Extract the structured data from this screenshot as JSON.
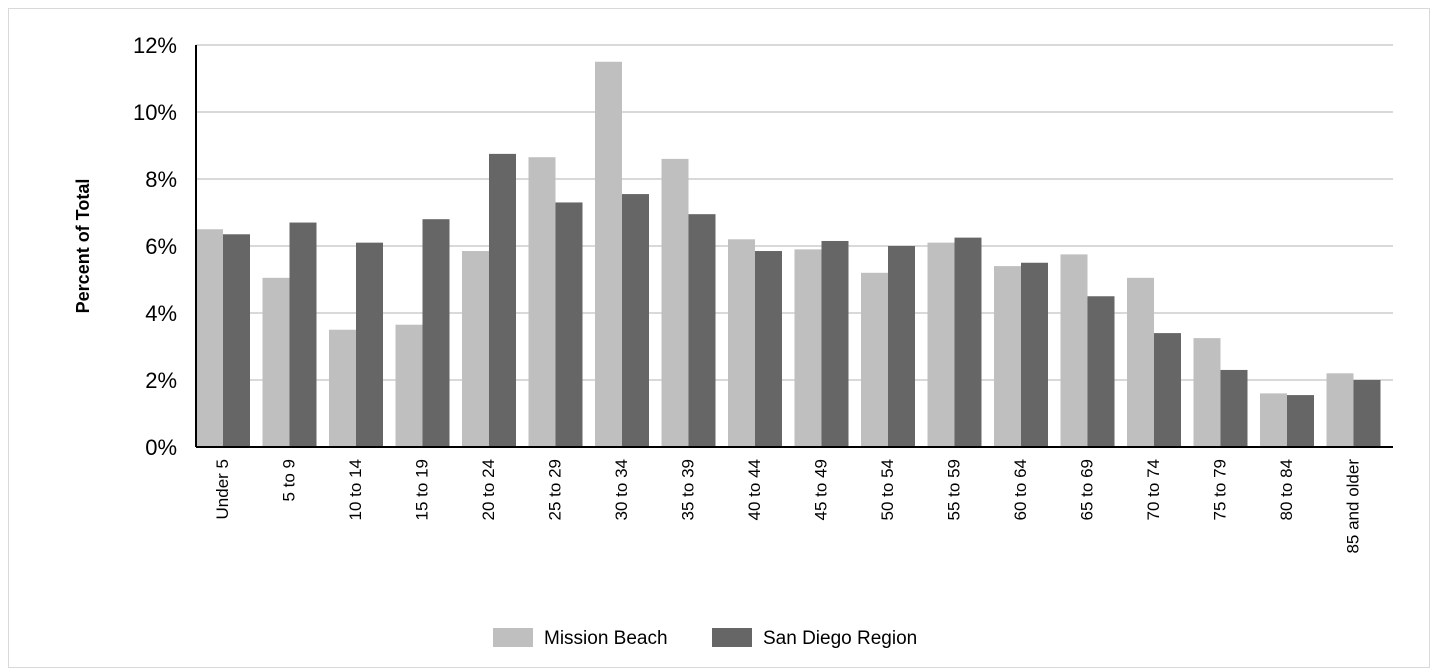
{
  "chart_data": {
    "type": "bar",
    "title": "",
    "xlabel": "",
    "ylabel": "Percent of Total",
    "ylim": [
      0,
      12
    ],
    "yticks": [
      "0%",
      "2%",
      "4%",
      "6%",
      "8%",
      "10%",
      "12%"
    ],
    "ytick_values": [
      0,
      2,
      4,
      6,
      8,
      10,
      12
    ],
    "grid": true,
    "legend_position": "bottom",
    "categories": [
      "Under 5",
      "5 to 9",
      "10 to 14",
      "15 to 19",
      "20 to 24",
      "25 to 29",
      "30 to 34",
      "35 to 39",
      "40 to 44",
      "45 to 49",
      "50 to 54",
      "55 to 59",
      "60 to 64",
      "65 to 69",
      "70 to 74",
      "75 to 79",
      "80 to 84",
      "85 and older"
    ],
    "series": [
      {
        "name": "Mission Beach",
        "color": "#bfbfbf",
        "values": [
          6.5,
          5.05,
          3.5,
          3.65,
          5.85,
          8.65,
          11.5,
          8.6,
          6.2,
          5.9,
          5.2,
          6.1,
          5.4,
          5.75,
          5.05,
          3.25,
          1.6,
          2.2
        ]
      },
      {
        "name": "San Diego Region",
        "color": "#666666",
        "values": [
          6.35,
          6.7,
          6.1,
          6.8,
          8.75,
          7.3,
          7.55,
          6.95,
          5.85,
          6.15,
          6.0,
          6.25,
          5.5,
          4.5,
          3.4,
          2.3,
          1.55,
          2.0
        ]
      }
    ]
  }
}
